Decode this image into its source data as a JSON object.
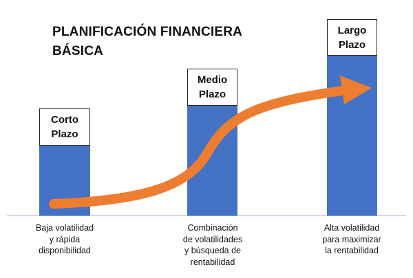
{
  "title": {
    "line1": "PLANIFICACIÓN FINANCIERA",
    "line2": "BÁSICA"
  },
  "stages": [
    {
      "label_line1": "Corto",
      "label_line2": "Plazo",
      "caption_lines": [
        "Baja volatilidad",
        "y rápida",
        "disponibilidad"
      ]
    },
    {
      "label_line1": "Medio",
      "label_line2": "Plazo",
      "caption_lines": [
        "Combinación",
        "de volatilidades",
        "y búsqueda de",
        "rentabilidad"
      ]
    },
    {
      "label_line1": "Largo",
      "label_line2": "Plazo",
      "caption_lines": [
        "Alta volatilidad",
        "para maximizar",
        "la rentabilidad"
      ]
    }
  ],
  "colors": {
    "bar": "#4472c4",
    "arrow": "#ed7d31",
    "text": "#111111"
  },
  "arrow_icon": "curved-growth-arrow"
}
